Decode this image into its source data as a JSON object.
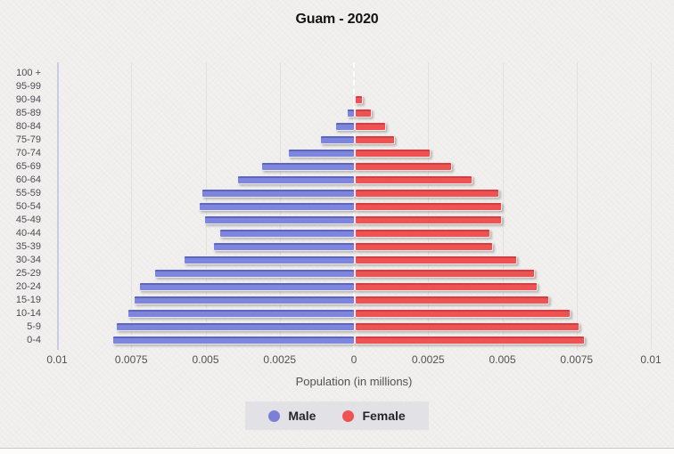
{
  "title": "Guam - 2020",
  "x_axis": {
    "label": "Population (in millions)",
    "ticks": [
      "0.01",
      "0.0075",
      "0.005",
      "0.0025",
      "0",
      "0.0025",
      "0.005",
      "0.0075",
      "0.01"
    ]
  },
  "legend": {
    "male_label": "Male",
    "female_label": "Female"
  },
  "colors": {
    "male": "#7e85dc",
    "female": "#ee5253",
    "legend_background": "#e2e2e6",
    "page_background": "#f1f0ee",
    "axis_line": "#c9cde4"
  },
  "chart_data": {
    "type": "bar",
    "subtype": "population_pyramid",
    "orientation": "horizontal",
    "title": "Guam - 2020",
    "xlabel": "Population (in millions)",
    "unit": "millions",
    "xlim_each_side": [
      0,
      0.01
    ],
    "grid": "vertical_ticks",
    "legend_position": "bottom",
    "categories_top_to_bottom": [
      "100 +",
      "95-99",
      "90-94",
      "85-89",
      "80-84",
      "75-79",
      "70-74",
      "65-69",
      "60-64",
      "55-59",
      "50-54",
      "45-49",
      "40-44",
      "35-39",
      "30-34",
      "25-29",
      "20-24",
      "15-19",
      "10-14",
      "5-9",
      "0-4"
    ],
    "series": [
      {
        "name": "Male",
        "side": "left",
        "color": "#7e85dc",
        "values": [
          0,
          0,
          0,
          0.0002,
          0.0006,
          0.0011,
          0.0022,
          0.0031,
          0.0039,
          0.0051,
          0.0052,
          0.005,
          0.0045,
          0.0047,
          0.0057,
          0.0067,
          0.0072,
          0.0074,
          0.0076,
          0.008,
          0.0081
        ]
      },
      {
        "name": "Female",
        "side": "right",
        "color": "#ee5253",
        "values": [
          0,
          0,
          0.0002,
          0.0005,
          0.001,
          0.0013,
          0.0025,
          0.0032,
          0.0039,
          0.0048,
          0.0049,
          0.0049,
          0.0045,
          0.0046,
          0.0054,
          0.006,
          0.0061,
          0.0065,
          0.0072,
          0.0075,
          0.0077
        ]
      }
    ]
  }
}
